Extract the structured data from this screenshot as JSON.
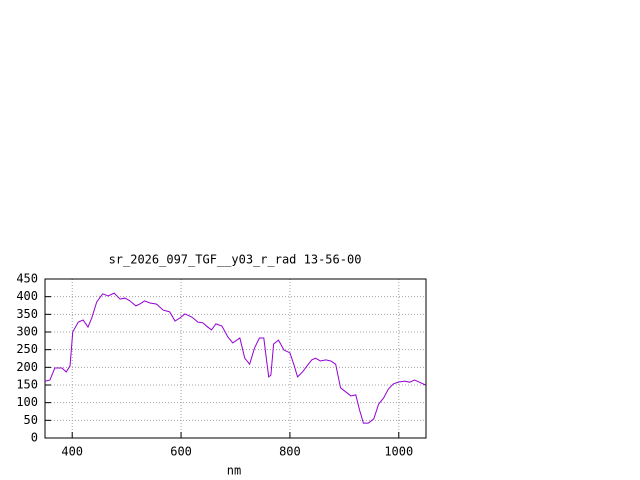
{
  "chart_data": {
    "type": "line",
    "title": "sr_2026_097_TGF__y03_r_rad 13-56-00",
    "x_label": "nm",
    "x": [
      350,
      359,
      368,
      381,
      389,
      396,
      401,
      411,
      420,
      429,
      436,
      445,
      456,
      466,
      477,
      488,
      497,
      506,
      517,
      524,
      533,
      543,
      555,
      567,
      579,
      589,
      598,
      607,
      620,
      631,
      640,
      649,
      656,
      664,
      675,
      686,
      695,
      708,
      717,
      726,
      735,
      744,
      752,
      757,
      761,
      765,
      770,
      779,
      789,
      800,
      807,
      814,
      823,
      833,
      840,
      847,
      856,
      866,
      875,
      884,
      893,
      903,
      912,
      921,
      928,
      935,
      944,
      954,
      963,
      972,
      981,
      990,
      999,
      1011,
      1020,
      1029,
      1038,
      1049
    ],
    "series": [
      {
        "color": "#9400d3",
        "values": [
          161,
          164,
          198,
          198,
          187,
          204,
          300,
          328,
          334,
          314,
          340,
          385,
          408,
          402,
          410,
          393,
          396,
          388,
          374,
          379,
          388,
          382,
          379,
          362,
          357,
          331,
          340,
          351,
          342,
          328,
          326,
          314,
          306,
          323,
          317,
          286,
          269,
          283,
          226,
          209,
          255,
          283,
          283,
          221,
          173,
          178,
          266,
          277,
          249,
          241,
          209,
          173,
          187,
          207,
          221,
          226,
          218,
          221,
          218,
          209,
          142,
          130,
          119,
          122,
          79,
          42,
          42,
          54,
          96,
          113,
          139,
          153,
          158,
          161,
          158,
          164,
          158,
          150
        ]
      }
    ],
    "xlim": [
      350,
      1050
    ],
    "xticks": [
      400,
      600,
      800,
      1000
    ],
    "ylim": [
      0,
      450
    ],
    "yticks": [
      0,
      50,
      100,
      150,
      200,
      250,
      300,
      350,
      400,
      450
    ],
    "grid": true
  }
}
